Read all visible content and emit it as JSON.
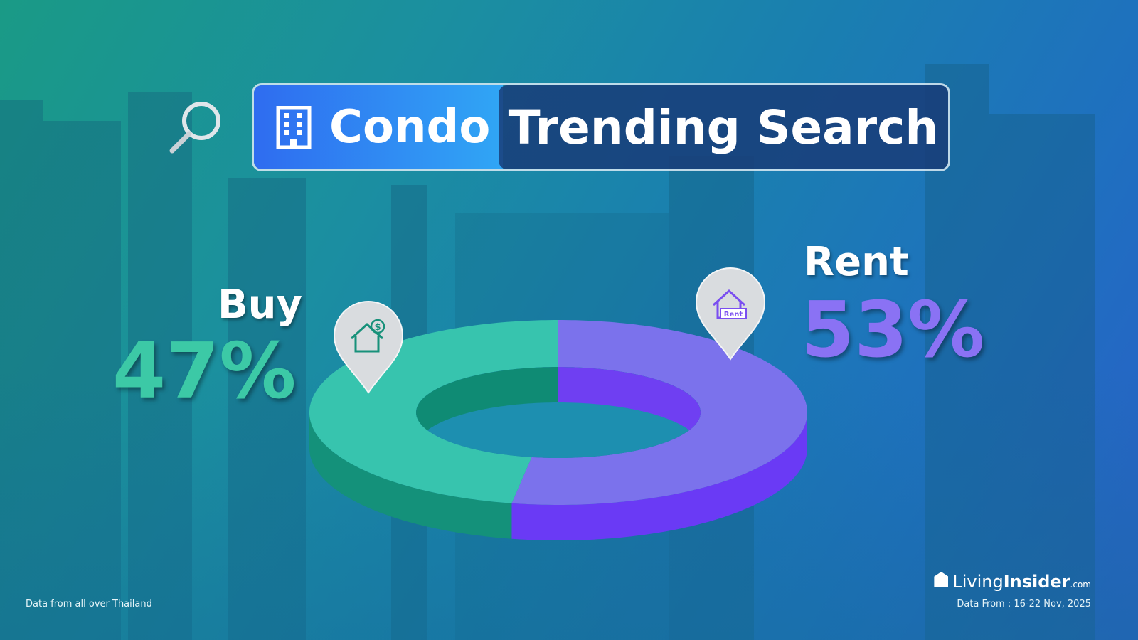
{
  "banner": {
    "category": "Condo",
    "title": "Trending Search",
    "icons": {
      "search": "search-icon",
      "building": "building-icon"
    }
  },
  "chart_data": {
    "type": "pie",
    "style": "3d-donut",
    "categories": [
      "Buy",
      "Rent"
    ],
    "values": [
      47,
      53
    ],
    "labels": [
      "47%",
      "53%"
    ],
    "colors": {
      "Buy": "#3cc9b0",
      "Rent": "#7a6cf0"
    },
    "icons": {
      "Buy": "house-dollar-pin-icon",
      "Rent": "house-rent-pin-icon"
    },
    "pin_rent_label": "Rent"
  },
  "footer": {
    "left": "Data from all over Thailand",
    "right": "Data From : 16-22 Nov, 2025"
  },
  "logo": {
    "name_light": "Living",
    "name_bold": "Insider",
    "suffix": ".com"
  }
}
